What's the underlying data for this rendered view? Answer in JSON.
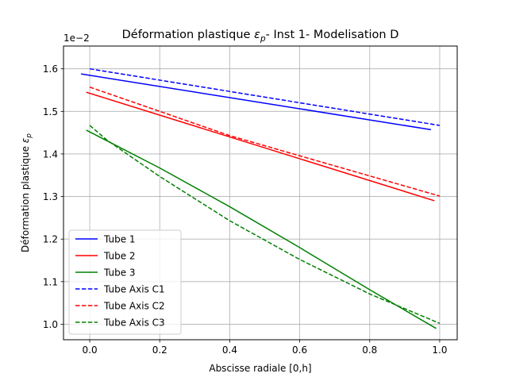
{
  "chart_data": {
    "type": "line",
    "title": {
      "prefix": "Déformation plastique ",
      "symbol": "ε",
      "subscript": "p",
      "suffix": "- Inst 1- Modelisation D"
    },
    "xlabel": "Abscisse radiale [0,h]",
    "ylabel": {
      "prefix": "Déformation plastique ",
      "symbol": "ε",
      "subscript": "p"
    },
    "y_offset_label": "1e−2",
    "xlim": [
      -0.075,
      1.05
    ],
    "ylim": [
      0.9635,
      1.6535
    ],
    "xticks": [
      0.0,
      0.2,
      0.4,
      0.6,
      0.8,
      1.0
    ],
    "xtick_labels": [
      "0.0",
      "0.2",
      "0.4",
      "0.6",
      "0.8",
      "1.0"
    ],
    "yticks": [
      1.0,
      1.1,
      1.2,
      1.3,
      1.4,
      1.5,
      1.6
    ],
    "ytick_labels": [
      "1.0",
      "1.1",
      "1.2",
      "1.3",
      "1.4",
      "1.5",
      "1.6"
    ],
    "grid": true,
    "legend_position": "lower-left",
    "series": [
      {
        "name": "Tube 1",
        "color": "#0000ff",
        "dash": "solid",
        "x": [
          -0.025,
          0.975
        ],
        "y": [
          1.588,
          1.457
        ]
      },
      {
        "name": "Tube 2",
        "color": "#ff0000",
        "dash": "solid",
        "x": [
          -0.01,
          0.985
        ],
        "y": [
          1.545,
          1.29
        ]
      },
      {
        "name": "Tube 3",
        "color": "#008000",
        "dash": "solid",
        "x": [
          -0.01,
          0.2,
          0.4,
          0.6,
          0.8,
          0.99
        ],
        "y": [
          1.456,
          1.367,
          1.276,
          1.18,
          1.081,
          0.99
        ]
      },
      {
        "name": "Tube Axis C1",
        "color": "#0000ff",
        "dash": "dashed",
        "x": [
          0.0,
          1.0
        ],
        "y": [
          1.6,
          1.467
        ]
      },
      {
        "name": "Tube Axis C2",
        "color": "#ff0000",
        "dash": "dashed",
        "x": [
          0.0,
          0.4,
          1.0
        ],
        "y": [
          1.557,
          1.443,
          1.301
        ]
      },
      {
        "name": "Tube Axis C3",
        "color": "#008000",
        "dash": "dashed",
        "x": [
          0.0,
          0.05,
          0.2,
          0.4,
          0.6,
          0.8,
          1.0
        ],
        "y": [
          1.467,
          1.432,
          1.347,
          1.243,
          1.152,
          1.071,
          1.002
        ]
      }
    ]
  }
}
